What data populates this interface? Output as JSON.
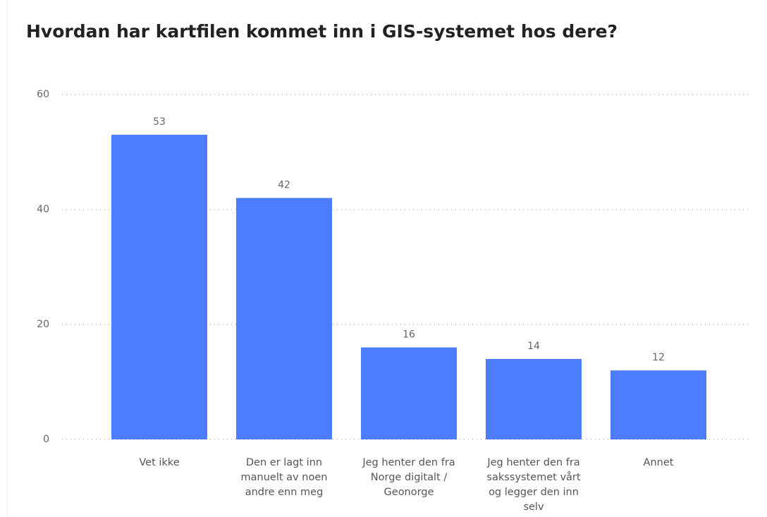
{
  "chart_data": {
    "type": "bar",
    "title": "Hvordan har kartfilen kommet inn i GIS-systemet hos dere?",
    "categories": [
      "Vet ikke",
      "Den er lagt inn manuelt av noen andre enn meg",
      "Jeg henter den fra Norge digitalt / Geonorge",
      "Jeg henter den fra sakssystemet vårt og legger den inn selv",
      "Annet"
    ],
    "values": [
      53,
      42,
      16,
      14,
      12
    ],
    "color": "#4d7cff",
    "ylim": [
      0,
      60
    ],
    "yticks": [
      0,
      20,
      40,
      60
    ],
    "grid": true
  }
}
